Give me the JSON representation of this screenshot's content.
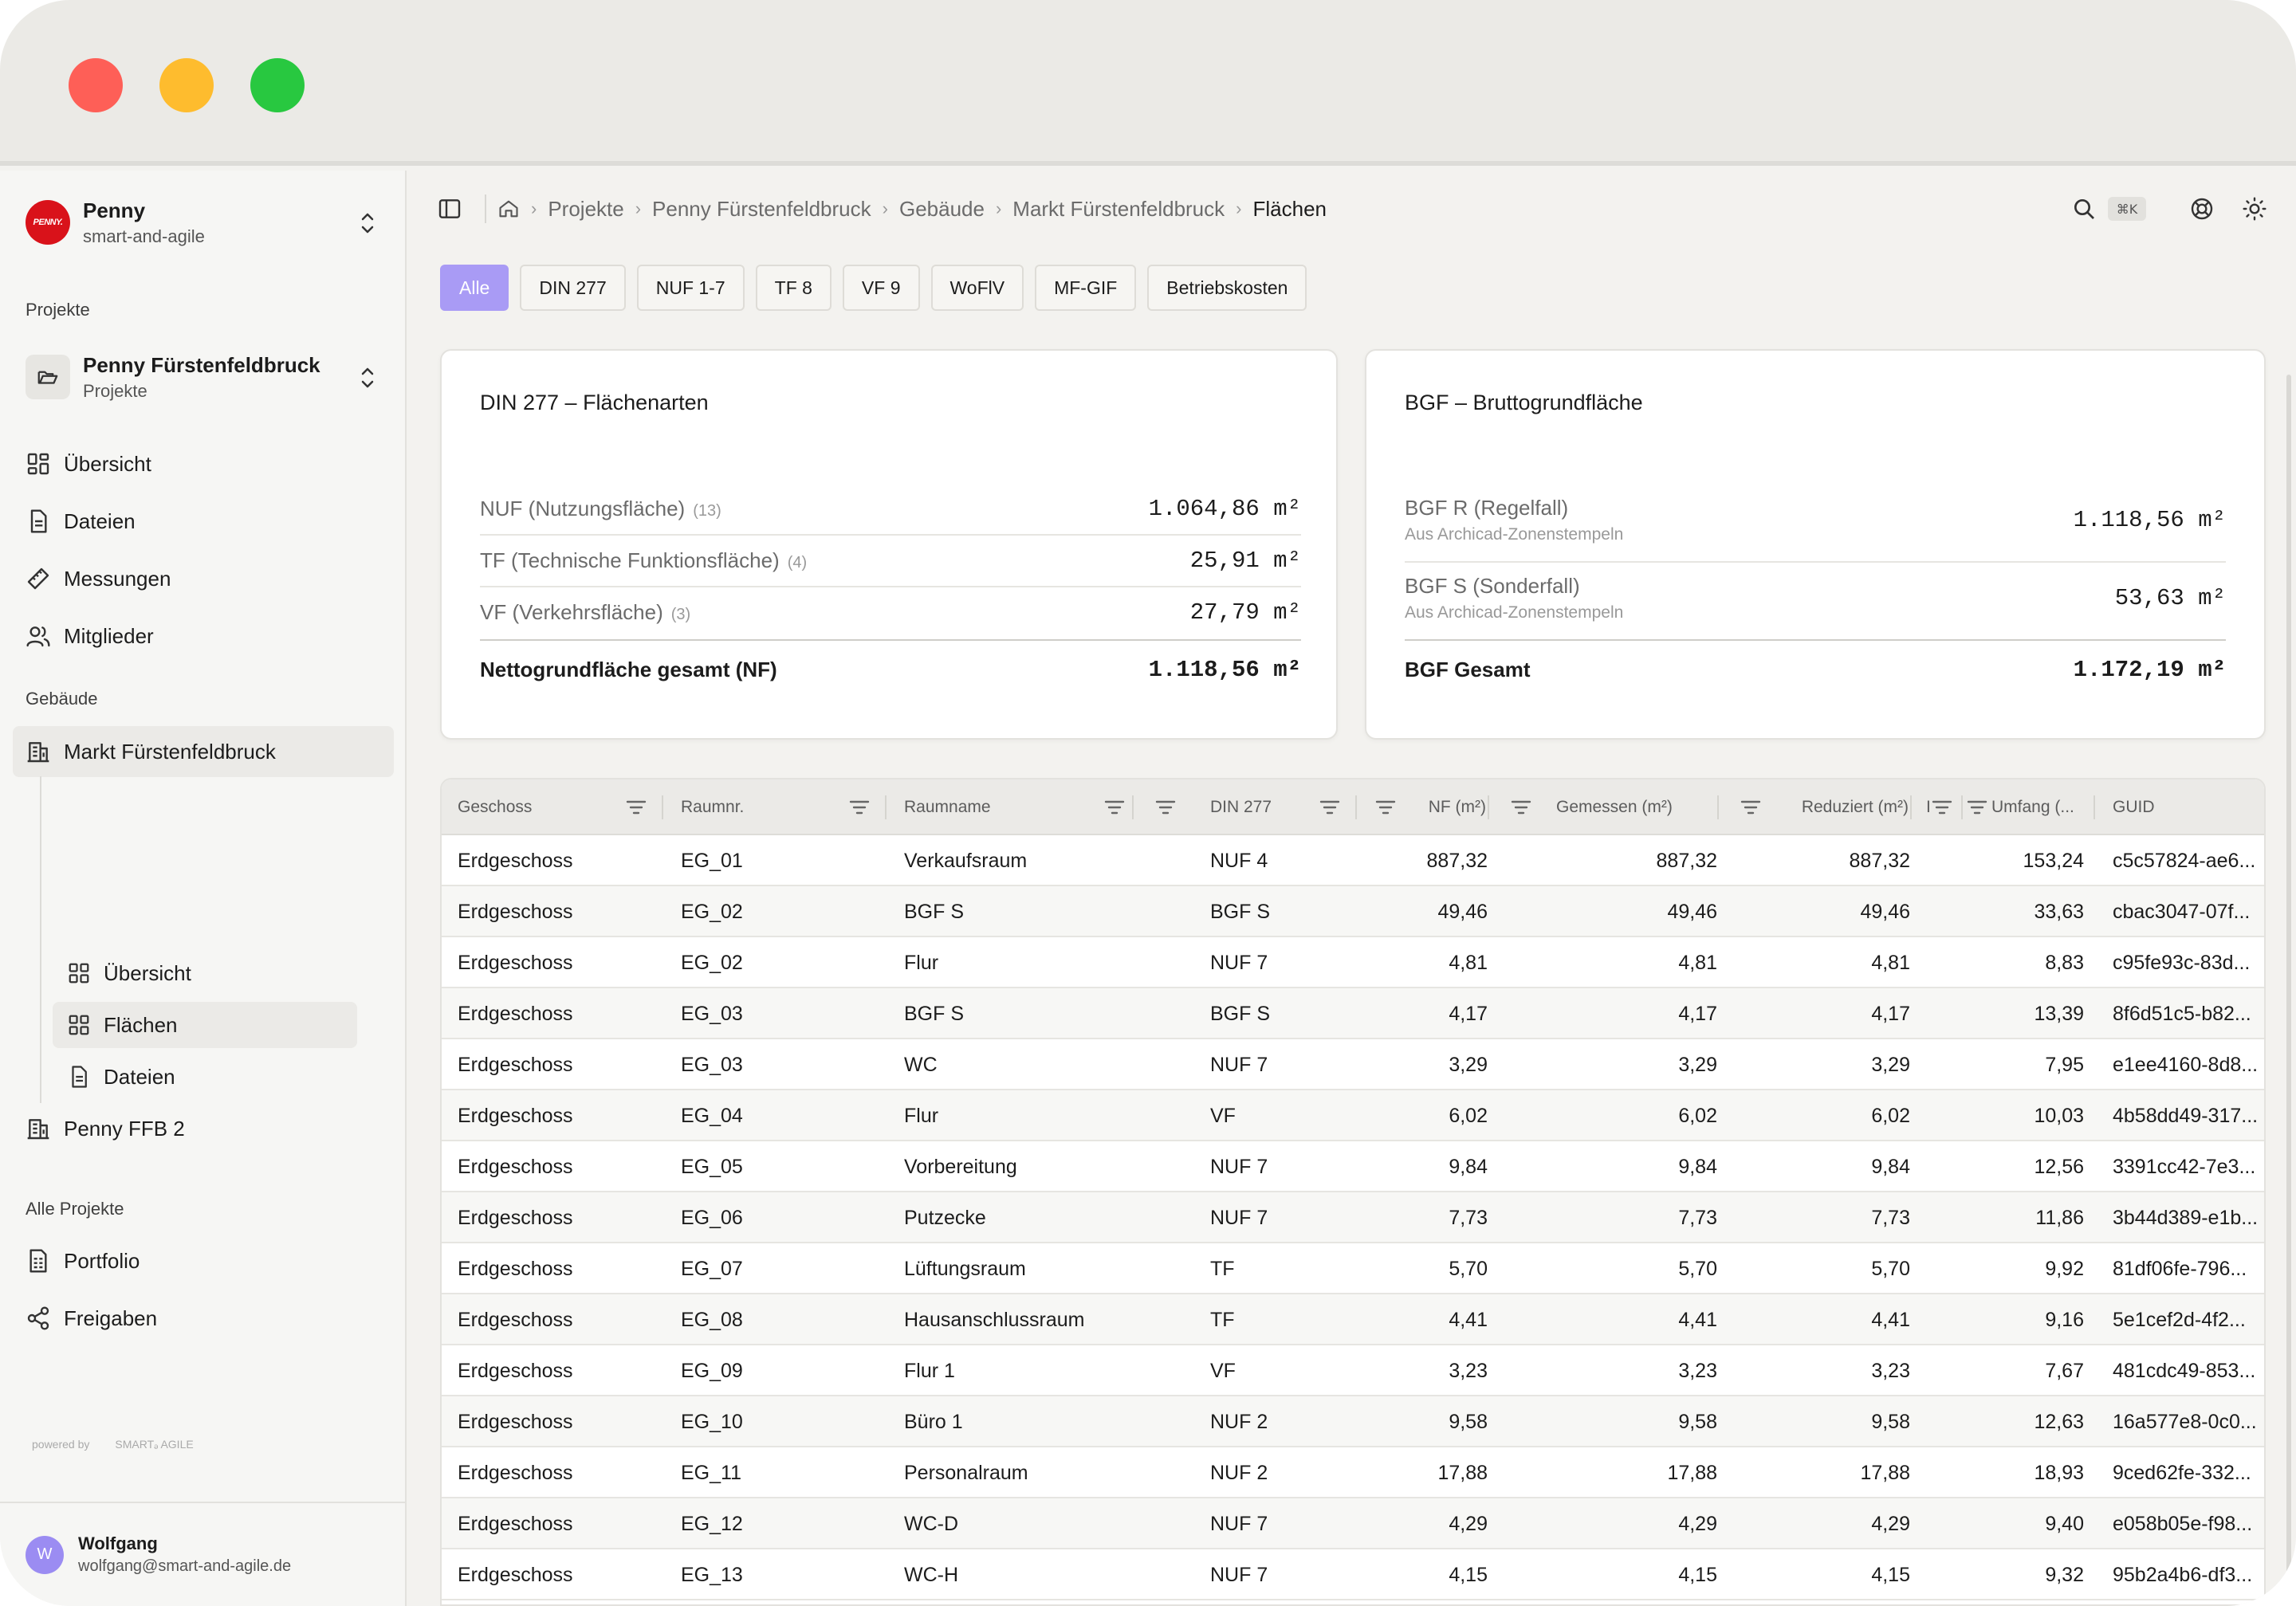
{
  "team": {
    "name": "Penny",
    "sub": "smart-and-agile",
    "logo_text": "PENNY."
  },
  "sidebar": {
    "projects_label": "Projekte",
    "project": {
      "name": "Penny Fürstenfeldbruck",
      "sub": "Projekte"
    },
    "nav": [
      {
        "label": "Übersicht",
        "icon": "grid-icon"
      },
      {
        "label": "Dateien",
        "icon": "file-icon"
      },
      {
        "label": "Messungen",
        "icon": "ruler-icon"
      },
      {
        "label": "Mitglieder",
        "icon": "users-icon"
      }
    ],
    "buildings_label": "Gebäude",
    "building_active": "Markt Fürstenfeldbruck",
    "building_sub": [
      {
        "label": "Übersicht",
        "icon": "grid-icon"
      },
      {
        "label": "Flächen",
        "icon": "grid-icon"
      },
      {
        "label": "Dateien",
        "icon": "file-icon"
      }
    ],
    "building_other": "Penny FFB 2",
    "all_projects_label": "Alle Projekte",
    "all_nav": [
      {
        "label": "Portfolio",
        "icon": "portfolio-icon"
      },
      {
        "label": "Freigaben",
        "icon": "share-icon"
      }
    ],
    "powered_by": "powered by",
    "powered_brand": "SMARTₔ AGILE"
  },
  "user": {
    "initial": "W",
    "name": "Wolfgang",
    "email": "wolfgang@smart-and-agile.de"
  },
  "breadcrumb": [
    "Projekte",
    "Penny Fürstenfeldbruck",
    "Gebäude",
    "Markt Fürstenfeldbruck",
    "Flächen"
  ],
  "search_shortcut": "⌘K",
  "tabs": [
    "Alle",
    "DIN 277",
    "NUF 1-7",
    "TF 8",
    "VF 9",
    "WoFlV",
    "MF-GIF",
    "Betriebskosten"
  ],
  "din_card": {
    "title": "DIN 277 – Flächenarten",
    "rows": [
      {
        "label": "NUF (Nutzungsfläche)",
        "count": "(13)",
        "value": "1.064,86 m²"
      },
      {
        "label": "TF (Technische Funktionsfläche)",
        "count": "(4)",
        "value": "25,91 m²"
      },
      {
        "label": "VF (Verkehrsfläche)",
        "count": "(3)",
        "value": "27,79 m²"
      }
    ],
    "total_label": "Nettogrundfläche gesamt (NF)",
    "total_value": "1.118,56 m²"
  },
  "bgf_card": {
    "title": "BGF – Bruttogrundfläche",
    "rows": [
      {
        "label": "BGF R (Regelfall)",
        "sub": "Aus Archicad-Zonenstempeln",
        "value": "1.118,56 m²"
      },
      {
        "label": "BGF S (Sonderfall)",
        "sub": "Aus Archicad-Zonenstempeln",
        "value": "53,63 m²"
      }
    ],
    "total_label": "BGF Gesamt",
    "total_value": "1.172,19 m²"
  },
  "table": {
    "columns": [
      "Geschoss",
      "Raumnr.",
      "Raumname",
      "DIN 277",
      "NF (m²)",
      "Gemessen (m²)",
      "Reduziert (m²)",
      "I",
      "Umfang (...",
      "GUID"
    ],
    "rows": [
      [
        "Erdgeschoss",
        "EG_01",
        "Verkaufsraum",
        "NUF 4",
        "887,32",
        "887,32",
        "887,32",
        "153,24",
        "c5c57824-ae6..."
      ],
      [
        "Erdgeschoss",
        "EG_02",
        "BGF S",
        "BGF S",
        "49,46",
        "49,46",
        "49,46",
        "33,63",
        "cbac3047-07f..."
      ],
      [
        "Erdgeschoss",
        "EG_02",
        "Flur",
        "NUF 7",
        "4,81",
        "4,81",
        "4,81",
        "8,83",
        "c95fe93c-83d..."
      ],
      [
        "Erdgeschoss",
        "EG_03",
        "BGF S",
        "BGF S",
        "4,17",
        "4,17",
        "4,17",
        "13,39",
        "8f6d51c5-b82..."
      ],
      [
        "Erdgeschoss",
        "EG_03",
        "WC",
        "NUF 7",
        "3,29",
        "3,29",
        "3,29",
        "7,95",
        "e1ee4160-8d8..."
      ],
      [
        "Erdgeschoss",
        "EG_04",
        "Flur",
        "VF",
        "6,02",
        "6,02",
        "6,02",
        "10,03",
        "4b58dd49-317..."
      ],
      [
        "Erdgeschoss",
        "EG_05",
        "Vorbereitung",
        "NUF 7",
        "9,84",
        "9,84",
        "9,84",
        "12,56",
        "3391cc42-7e3..."
      ],
      [
        "Erdgeschoss",
        "EG_06",
        "Putzecke",
        "NUF 7",
        "7,73",
        "7,73",
        "7,73",
        "11,86",
        "3b44d389-e1b..."
      ],
      [
        "Erdgeschoss",
        "EG_07",
        "Lüftungsraum",
        "TF",
        "5,70",
        "5,70",
        "5,70",
        "9,92",
        "81df06fe-796..."
      ],
      [
        "Erdgeschoss",
        "EG_08",
        "Hausanschlussraum",
        "TF",
        "4,41",
        "4,41",
        "4,41",
        "9,16",
        "5e1cef2d-4f2..."
      ],
      [
        "Erdgeschoss",
        "EG_09",
        "Flur 1",
        "VF",
        "3,23",
        "3,23",
        "3,23",
        "7,67",
        "481cdc49-853..."
      ],
      [
        "Erdgeschoss",
        "EG_10",
        "Büro 1",
        "NUF 2",
        "9,58",
        "9,58",
        "9,58",
        "12,63",
        "16a577e8-0c0..."
      ],
      [
        "Erdgeschoss",
        "EG_11",
        "Personalraum",
        "NUF 2",
        "17,88",
        "17,88",
        "17,88",
        "18,93",
        "9ced62fe-332..."
      ],
      [
        "Erdgeschoss",
        "EG_12",
        "WC-D",
        "NUF 7",
        "4,29",
        "4,29",
        "4,29",
        "9,40",
        "e058b05e-f98..."
      ],
      [
        "Erdgeschoss",
        "EG_13",
        "WC-H",
        "NUF 7",
        "4,15",
        "4,15",
        "4,15",
        "9,32",
        "95b2a4b6-df3..."
      ]
    ]
  },
  "colors": {
    "accent": "#a99bf5",
    "brand": "#d9121a"
  }
}
